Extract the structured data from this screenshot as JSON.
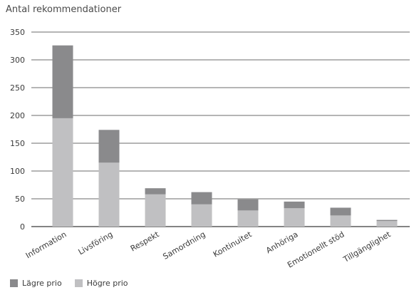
{
  "chart_data": {
    "type": "bar",
    "stacked": true,
    "title": "",
    "ylabel": "Antal rekommendationer",
    "xlabel": "",
    "ylim": [
      0,
      350
    ],
    "yticks": [
      0,
      50,
      100,
      150,
      200,
      250,
      300,
      350
    ],
    "grid": true,
    "legend_position": "bottom-left",
    "categories": [
      "Information",
      "Livsföring",
      "Respekt",
      "Samordning",
      "Kontinuitet",
      "Anhöriga",
      "Emotionellt stöd",
      "Tillgänglighet"
    ],
    "series": [
      {
        "name": "Högre prio",
        "color": "#c0c0c2",
        "values": [
          195,
          115,
          58,
          40,
          29,
          33,
          20,
          10
        ]
      },
      {
        "name": "Lägre prio",
        "color": "#8a8a8c",
        "values": [
          131,
          59,
          11,
          22,
          20,
          12,
          14,
          2
        ]
      }
    ]
  },
  "legend": [
    {
      "label": "Lägre prio",
      "color": "#8a8a8c"
    },
    {
      "label": "Högre prio",
      "color": "#c0c0c2"
    }
  ]
}
